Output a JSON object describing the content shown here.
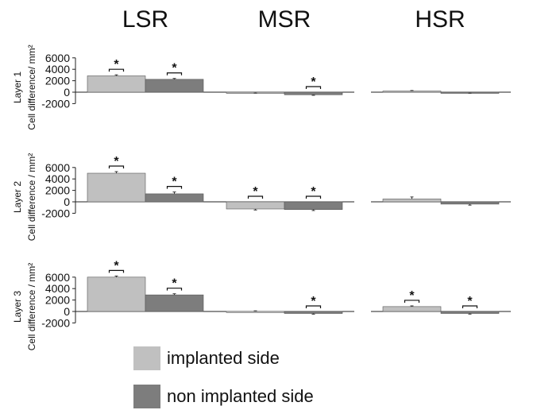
{
  "chart_data": {
    "type": "bar",
    "columns": [
      "LSR",
      "MSR",
      "HSR"
    ],
    "rows": [
      "Layer 1",
      "Layer 2",
      "Layer 3"
    ],
    "ylabel": "Cell difference/ mm²",
    "ylabels_by_row": [
      "Cell difference/ mm²",
      "Cell difference / mm²",
      "Cell difference / mm²"
    ],
    "yticks": [
      -2000,
      0,
      2000,
      4000,
      6000
    ],
    "ylim": [
      -2000,
      6000
    ],
    "series": [
      {
        "name": "implanted side",
        "color": "#c0c0c0"
      },
      {
        "name": "non implanted side",
        "color": "#7d7d7d"
      }
    ],
    "significance_marker": "*",
    "panels": [
      {
        "row": "Layer 1",
        "column": "LSR",
        "values": [
          2850,
          2250
        ],
        "errors": [
          180,
          150
        ],
        "significant": [
          true,
          true
        ]
      },
      {
        "row": "Layer 1",
        "column": "MSR",
        "values": [
          -80,
          -450
        ],
        "errors": [
          80,
          100
        ],
        "significant": [
          false,
          true
        ]
      },
      {
        "row": "Layer 1",
        "column": "HSR",
        "values": [
          200,
          -100
        ],
        "errors": [
          90,
          80
        ],
        "significant": [
          false,
          false
        ]
      },
      {
        "row": "Layer 2",
        "column": "LSR",
        "values": [
          5000,
          1400
        ],
        "errors": [
          280,
          320
        ],
        "significant": [
          true,
          true
        ]
      },
      {
        "row": "Layer 2",
        "column": "MSR",
        "values": [
          -1250,
          -1350
        ],
        "errors": [
          180,
          170
        ],
        "significant": [
          true,
          true
        ]
      },
      {
        "row": "Layer 2",
        "column": "HSR",
        "values": [
          500,
          -400
        ],
        "errors": [
          350,
          180
        ],
        "significant": [
          false,
          false
        ]
      },
      {
        "row": "Layer 3",
        "column": "LSR",
        "values": [
          6000,
          2900
        ],
        "errors": [
          200,
          200
        ],
        "significant": [
          true,
          true
        ]
      },
      {
        "row": "Layer 3",
        "column": "MSR",
        "values": [
          30,
          -350
        ],
        "errors": [
          80,
          120
        ],
        "significant": [
          false,
          true
        ]
      },
      {
        "row": "Layer 3",
        "column": "HSR",
        "values": [
          850,
          -350
        ],
        "errors": [
          130,
          110
        ],
        "significant": [
          true,
          true
        ]
      }
    ]
  }
}
